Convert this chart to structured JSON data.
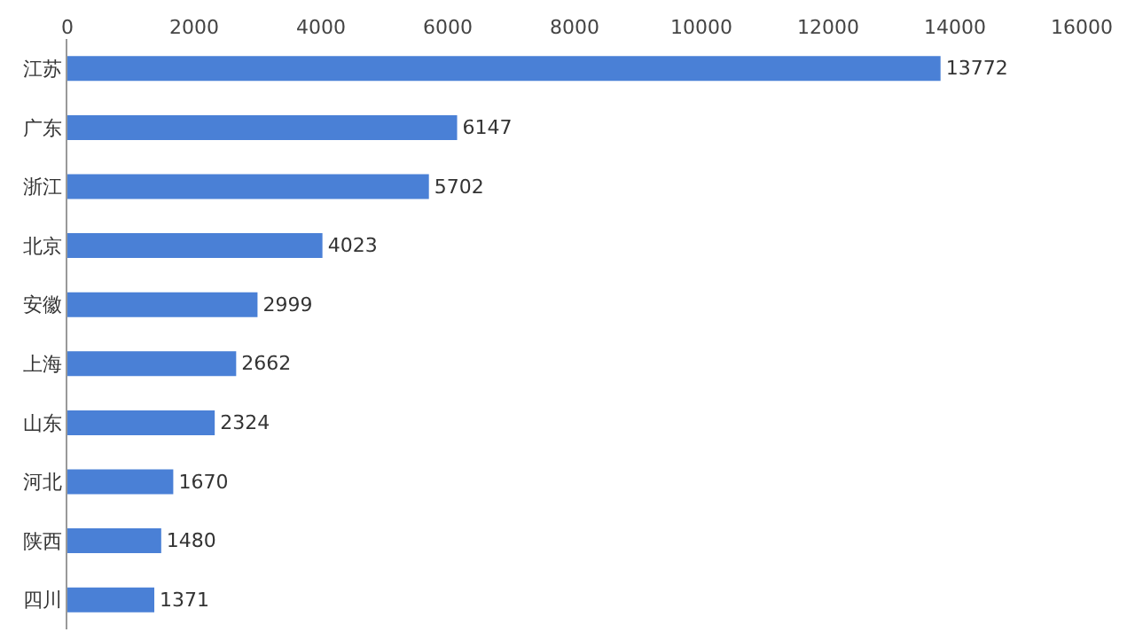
{
  "chart_data": {
    "type": "bar",
    "orientation": "horizontal",
    "categories": [
      "江苏",
      "广东",
      "浙江",
      "北京",
      "安徽",
      "上海",
      "山东",
      "河北",
      "陕西",
      "四川"
    ],
    "values": [
      13772,
      6147,
      5702,
      4023,
      2999,
      2662,
      2324,
      1670,
      1480,
      1371
    ],
    "color": "#4a80d6",
    "xlim": [
      0,
      16000
    ],
    "xticks": [
      0,
      2000,
      4000,
      6000,
      8000,
      10000,
      12000,
      14000,
      16000
    ],
    "grid": false,
    "legend": false,
    "data_labels": true
  }
}
